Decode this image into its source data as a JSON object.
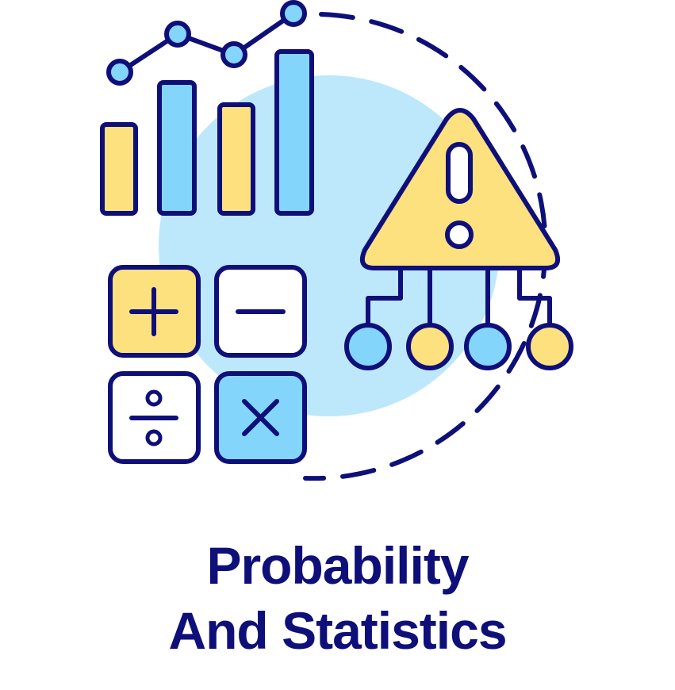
{
  "caption": {
    "line1": "Probability",
    "line2": "And Statistics"
  },
  "icons": {
    "bars": "bar-chart-icon",
    "trend": "line-trend-icon",
    "warning": "warning-triangle-icon",
    "plus": "plus-icon",
    "minus": "minus-icon",
    "divide": "divide-icon",
    "multiply": "multiply-icon",
    "tree": "branch-nodes-icon"
  },
  "colors": {
    "outline": "#0f0f7a",
    "yellow": "#fde17e",
    "blue": "#84d5fb",
    "background_circle": "#bde8fb",
    "text": "#0f0f7a"
  }
}
